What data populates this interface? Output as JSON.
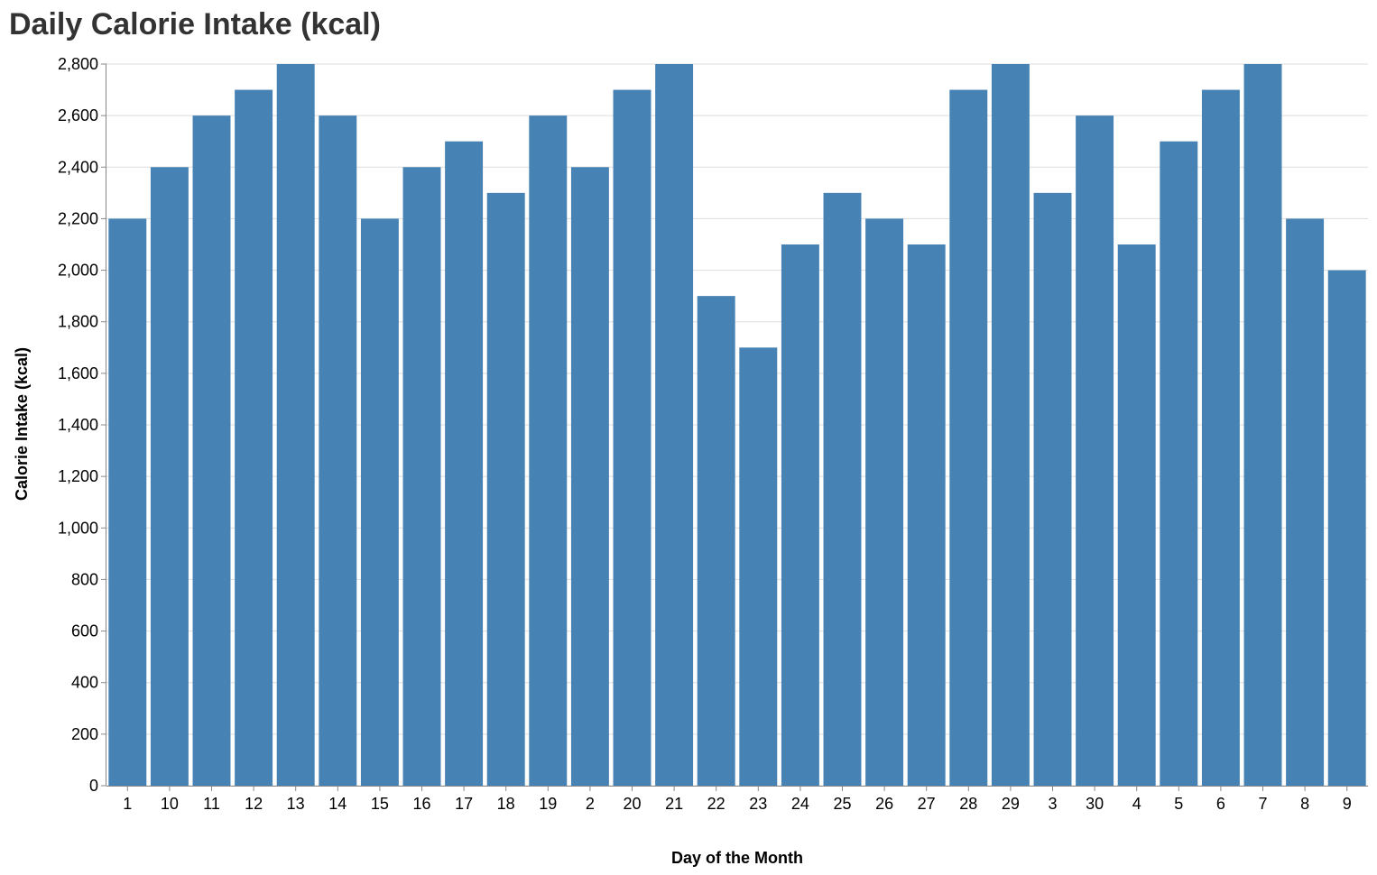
{
  "chart_data": {
    "type": "bar",
    "title": "Daily Calorie Intake (kcal)",
    "xlabel": "Day of the Month",
    "ylabel": "Calorie Intake (kcal)",
    "categories": [
      "1",
      "10",
      "11",
      "12",
      "13",
      "14",
      "15",
      "16",
      "17",
      "18",
      "19",
      "2",
      "20",
      "21",
      "22",
      "23",
      "24",
      "25",
      "26",
      "27",
      "28",
      "29",
      "3",
      "30",
      "4",
      "5",
      "6",
      "7",
      "8",
      "9"
    ],
    "values": [
      2200,
      2400,
      2600,
      2700,
      2800,
      2600,
      2200,
      2400,
      2500,
      2300,
      2600,
      2400,
      2700,
      2800,
      1900,
      1700,
      2100,
      2300,
      2200,
      2100,
      2700,
      2800,
      2300,
      2600,
      2100,
      2500,
      2700,
      2800,
      2200,
      2000
    ],
    "ylim": [
      0,
      2800
    ],
    "yticks": [
      0,
      200,
      400,
      600,
      800,
      1000,
      1200,
      1400,
      1600,
      1800,
      2000,
      2200,
      2400,
      2600,
      2800
    ],
    "grid": true,
    "bar_color": "#4682b4",
    "grid_color": "#dddddd",
    "axis_color": "#888888"
  }
}
